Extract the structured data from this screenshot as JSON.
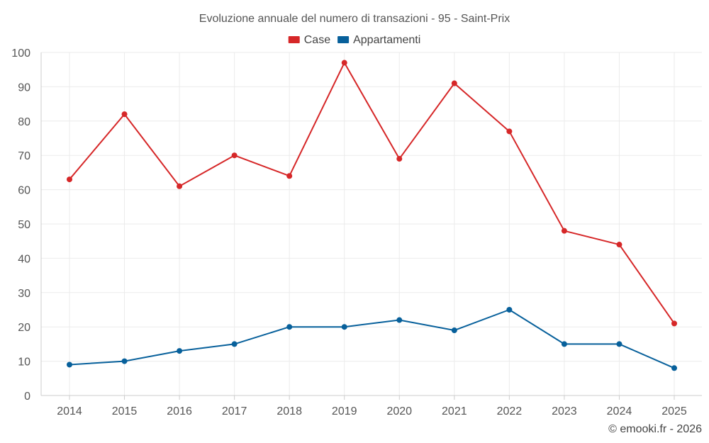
{
  "chart_data": {
    "type": "line",
    "title": "Evoluzione annuale del numero di transazioni - 95 - Saint-Prix",
    "xlabel": "",
    "ylabel": "",
    "categories": [
      "2014",
      "2015",
      "2016",
      "2017",
      "2018",
      "2019",
      "2020",
      "2021",
      "2022",
      "2023",
      "2024",
      "2025"
    ],
    "ylim": [
      0,
      100
    ],
    "yticks": [
      0,
      10,
      20,
      30,
      40,
      50,
      60,
      70,
      80,
      90,
      100
    ],
    "grid": true,
    "legend_position": "top-center",
    "series": [
      {
        "name": "Case",
        "color": "#d62728",
        "values": [
          63,
          82,
          61,
          70,
          64,
          97,
          69,
          91,
          77,
          48,
          44,
          21
        ]
      },
      {
        "name": "Appartamenti",
        "color": "#07609b",
        "values": [
          9,
          10,
          13,
          15,
          20,
          20,
          22,
          19,
          25,
          15,
          15,
          8
        ]
      }
    ]
  },
  "credit": "© emooki.fr - 2026"
}
